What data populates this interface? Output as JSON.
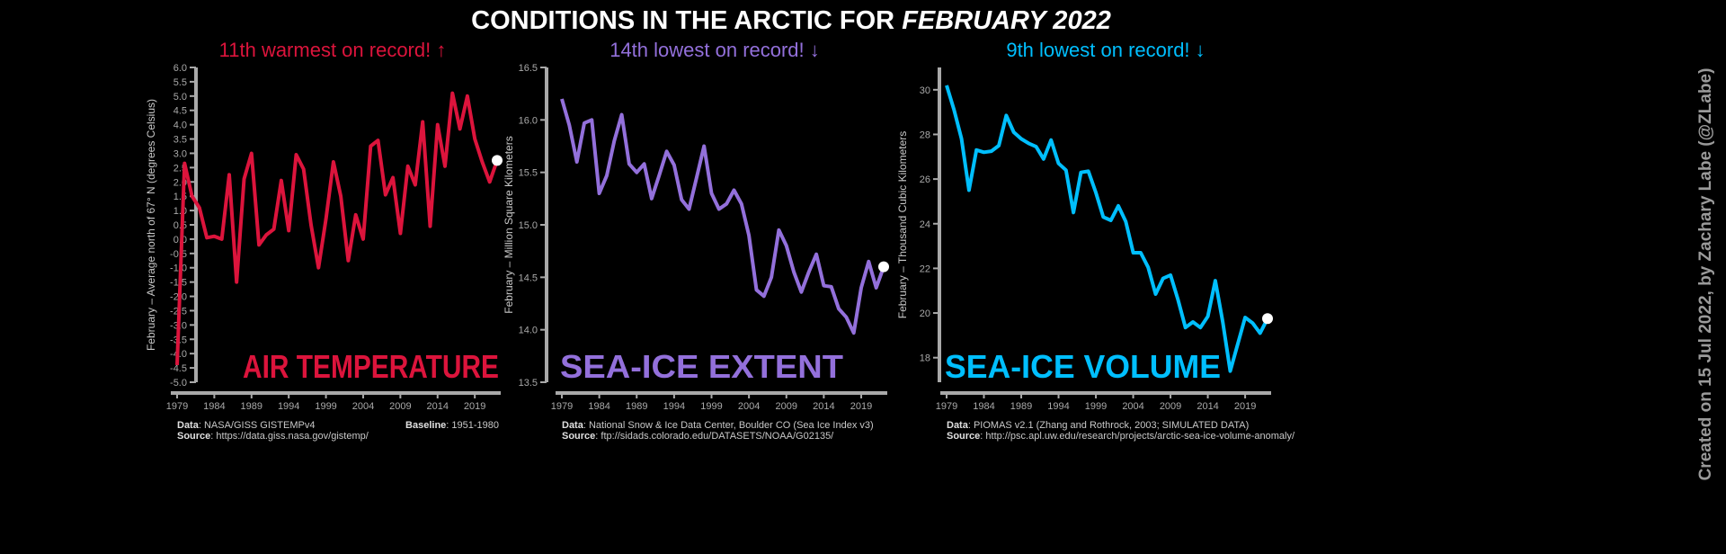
{
  "title_prefix": "CONDITIONS IN THE ARCTIC FOR ",
  "title_emph": "FEBRUARY 2022",
  "credit": "Created on 15 Jul 2022, by Zachary Labe (@ZLabe)",
  "colors": {
    "air": "#DC143C",
    "extent": "#9370DB",
    "volume": "#00BFFF",
    "axis": "#a9a9a9",
    "marker": "#ffffff"
  },
  "chart_data": [
    {
      "type": "line",
      "title": "AIR TEMPERATURE",
      "subtitle": "11th warmest on record! ↑",
      "ylabel": "February – Average north of 67° N (degrees Celsius)",
      "ylim": [
        -5.0,
        6.0
      ],
      "yticks": [
        -5.0,
        -4.5,
        -4.0,
        -3.5,
        -3.0,
        -2.5,
        -2.0,
        -1.5,
        -1.0,
        -0.5,
        0.0,
        0.5,
        1.0,
        1.5,
        2.0,
        2.5,
        3.0,
        3.5,
        4.0,
        4.5,
        5.0,
        5.5,
        6.0
      ],
      "ytick_decimals": 1,
      "xticks": [
        1979,
        1984,
        1989,
        1994,
        1999,
        2004,
        2009,
        2014,
        2019
      ],
      "x_start": 1979,
      "values": [
        -4.4,
        2.65,
        1.5,
        1.1,
        0.05,
        0.1,
        0.0,
        2.25,
        -1.5,
        2.1,
        3.0,
        -0.2,
        0.15,
        0.35,
        2.05,
        0.3,
        2.95,
        2.45,
        0.5,
        -1.0,
        0.7,
        2.7,
        1.5,
        -0.75,
        0.85,
        0.0,
        3.25,
        3.45,
        1.55,
        2.15,
        0.2,
        2.55,
        1.9,
        4.1,
        0.45,
        4.0,
        2.55,
        5.1,
        3.85,
        5.0,
        3.5,
        2.7,
        2.0,
        2.75
      ],
      "highlight_year": 2022,
      "data_label": "Data",
      "data_text": ": NASA/GISS GISTEMPv4",
      "source_label": "Source",
      "source_text": ": https://data.giss.nasa.gov/gistemp/",
      "baseline_label": "Baseline",
      "baseline_text": ": 1951-1980"
    },
    {
      "type": "line",
      "title": "SEA-ICE EXTENT",
      "subtitle": "14th lowest on record! ↓",
      "ylabel": "February – Million Square Kilometers",
      "ylim": [
        13.5,
        16.5
      ],
      "yticks": [
        13.5,
        14.0,
        14.5,
        15.0,
        15.5,
        16.0,
        16.5
      ],
      "ytick_decimals": 1,
      "xticks": [
        1979,
        1984,
        1989,
        1994,
        1999,
        2004,
        2009,
        2014,
        2019
      ],
      "x_start": 1979,
      "values": [
        16.2,
        15.95,
        15.6,
        15.97,
        16.0,
        15.3,
        15.47,
        15.8,
        16.05,
        15.58,
        15.5,
        15.58,
        15.25,
        15.47,
        15.7,
        15.57,
        15.24,
        15.15,
        15.45,
        15.75,
        15.3,
        15.15,
        15.2,
        15.33,
        15.2,
        14.9,
        14.38,
        14.32,
        14.5,
        14.95,
        14.8,
        14.55,
        14.36,
        14.55,
        14.72,
        14.42,
        14.41,
        14.2,
        14.12,
        13.97,
        14.4,
        14.65,
        14.4,
        14.6
      ],
      "highlight_year": 2022,
      "data_label": "Data",
      "data_text": ": National Snow & Ice Data Center, Boulder CO (Sea Ice Index v3)",
      "source_label": "Source",
      "source_text": ": ftp://sidads.colorado.edu/DATASETS/NOAA/G02135/"
    },
    {
      "type": "line",
      "title": "SEA-ICE VOLUME",
      "subtitle": "9th lowest on record! ↓",
      "ylabel": "February – Thousand Cubic Kilometers",
      "ylim": [
        16.9,
        31.0
      ],
      "yticks": [
        18,
        20,
        22,
        24,
        26,
        28,
        30
      ],
      "ytick_decimals": 0,
      "xticks": [
        1979,
        1984,
        1989,
        1994,
        1999,
        2004,
        2009,
        2014,
        2019
      ],
      "x_start": 1979,
      "values": [
        30.2,
        29.1,
        27.8,
        25.5,
        27.3,
        27.2,
        27.25,
        27.5,
        28.85,
        28.1,
        27.8,
        27.6,
        27.45,
        26.9,
        27.75,
        26.7,
        26.4,
        24.5,
        26.3,
        26.35,
        25.4,
        24.3,
        24.15,
        24.8,
        24.1,
        22.7,
        22.7,
        22.05,
        20.85,
        21.55,
        21.7,
        20.6,
        19.35,
        19.6,
        19.35,
        19.85,
        21.45,
        19.6,
        17.4,
        18.6,
        19.8,
        19.55,
        19.1,
        19.75
      ],
      "highlight_year": 2022,
      "data_label": "Data",
      "data_text": ": PIOMAS v2.1 (Zhang and Rothrock, 2003; SIMULATED DATA)",
      "source_label": "Source",
      "source_text": ": http://psc.apl.uw.edu/research/projects/arctic-sea-ice-volume-anomaly/"
    }
  ]
}
